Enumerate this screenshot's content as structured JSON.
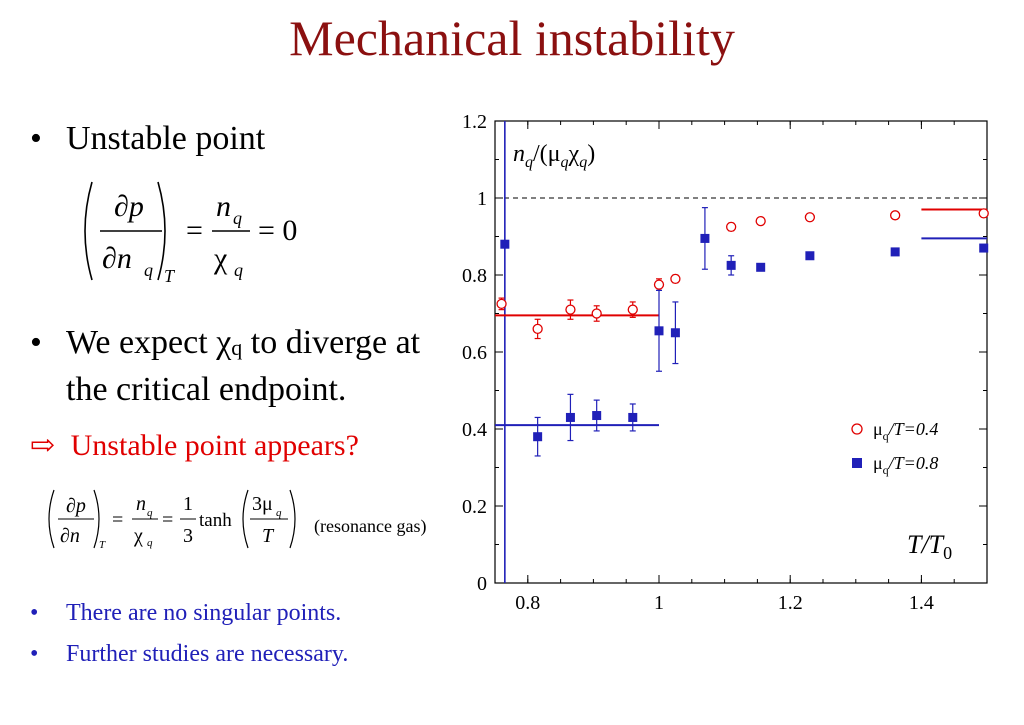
{
  "title": "Mechanical instability",
  "bullets": {
    "unstable_point": "Unstable point",
    "expect_line1_pre": "We expect ",
    "expect_chi": "χ",
    "expect_q": "q",
    "expect_line1_post": " to diverge at",
    "expect_line2": "the critical endpoint.",
    "arrow": "⇨",
    "appears": "Unstable point appears?",
    "resonance": "(resonance gas)",
    "no_singular": "There are no singular points.",
    "further": "Further studies are necessary."
  },
  "formula1": {
    "num_partial": "∂p",
    "den_partial": "∂n",
    "den_sub": "q",
    "outer_sub": "T",
    "eq": "=",
    "rhs_num": "n",
    "rhs_num_sub": "q",
    "rhs_den": "χ",
    "rhs_den_sub": "q",
    "tail": "= 0"
  },
  "formula2": {
    "num_partial": "∂p",
    "den_partial": "∂n",
    "outer_sub": "T",
    "eq": "=",
    "f1_num": "n",
    "f1_num_sub": "q",
    "f1_den": "χ",
    "f1_den_sub": "q",
    "eq2": "=",
    "third_num": "1",
    "third_den": "3",
    "tanh": "tanh",
    "arg_num": "3μ",
    "arg_num_sub": "q",
    "arg_den": "T"
  },
  "colors": {
    "title": "#8b1010",
    "red": "#e00000",
    "blue": "#2020b8",
    "frame": "#000000"
  },
  "chart_data": {
    "type": "scatter",
    "ylabel_text": "n",
    "ylabel_parts": [
      "n",
      "q",
      "/(μ",
      "q",
      "χ",
      "q",
      ")"
    ],
    "xlabel_parts": [
      "T/T",
      "0"
    ],
    "xlim": [
      0.75,
      1.5
    ],
    "ylim": [
      0,
      1.2
    ],
    "xticks": [
      0.8,
      1.0,
      1.2,
      1.4
    ],
    "xtick_labels": [
      "0.8",
      "1",
      "1.2",
      "1.4"
    ],
    "yticks": [
      0,
      0.2,
      0.4,
      0.6,
      0.8,
      1.0,
      1.2
    ],
    "ytick_labels": [
      "0",
      "0.2",
      "0.4",
      "0.6",
      "0.8",
      "1",
      "1.2"
    ],
    "reference_line": 1.0,
    "vertical_line_x": 0.765,
    "legend": [
      {
        "label_parts": [
          "μ",
          "q",
          "/T=0.4"
        ],
        "marker": "open-circle",
        "color": "#e00000"
      },
      {
        "label_parts": [
          "μ",
          "q",
          "/T=0.8"
        ],
        "marker": "filled-square",
        "color": "#2020b8"
      }
    ],
    "series": [
      {
        "name": "μq/T=0.4",
        "marker": "open-circle",
        "color": "#e00000",
        "points": [
          {
            "x": 0.76,
            "y": 0.725,
            "err": 0.015
          },
          {
            "x": 0.815,
            "y": 0.66,
            "err": 0.025
          },
          {
            "x": 0.865,
            "y": 0.71,
            "err": 0.025
          },
          {
            "x": 0.905,
            "y": 0.7,
            "err": 0.02
          },
          {
            "x": 0.96,
            "y": 0.71,
            "err": 0.02
          },
          {
            "x": 1.0,
            "y": 0.775,
            "err": 0.015
          },
          {
            "x": 1.025,
            "y": 0.79,
            "err": 0.01
          },
          {
            "x": 1.11,
            "y": 0.925,
            "err": 0.01
          },
          {
            "x": 1.155,
            "y": 0.94,
            "err": 0.008
          },
          {
            "x": 1.23,
            "y": 0.95,
            "err": 0.005
          },
          {
            "x": 1.36,
            "y": 0.955,
            "err": 0.005
          },
          {
            "x": 1.495,
            "y": 0.96,
            "err": 0.005
          }
        ],
        "segments": [
          {
            "x0": 0.75,
            "x1": 1.0,
            "y": 0.695
          },
          {
            "x0": 1.4,
            "x1": 1.5,
            "y": 0.97
          }
        ]
      },
      {
        "name": "μq/T=0.8",
        "marker": "filled-square",
        "color": "#2020b8",
        "points": [
          {
            "x": 0.765,
            "y": 0.88,
            "err": 0.0
          },
          {
            "x": 0.815,
            "y": 0.38,
            "err": 0.05
          },
          {
            "x": 0.865,
            "y": 0.43,
            "err": 0.06
          },
          {
            "x": 0.905,
            "y": 0.435,
            "err": 0.04
          },
          {
            "x": 0.96,
            "y": 0.43,
            "err": 0.035
          },
          {
            "x": 1.0,
            "y": 0.655,
            "err": 0.105
          },
          {
            "x": 1.025,
            "y": 0.65,
            "err": 0.08
          },
          {
            "x": 1.07,
            "y": 0.895,
            "err": 0.08
          },
          {
            "x": 1.11,
            "y": 0.825,
            "err": 0.025
          },
          {
            "x": 1.155,
            "y": 0.82,
            "err": 0.0
          },
          {
            "x": 1.23,
            "y": 0.85,
            "err": 0.0
          },
          {
            "x": 1.36,
            "y": 0.86,
            "err": 0.0
          },
          {
            "x": 1.495,
            "y": 0.87,
            "err": 0.0
          }
        ],
        "segments": [
          {
            "x0": 0.75,
            "x1": 1.0,
            "y": 0.41
          },
          {
            "x0": 1.4,
            "x1": 1.5,
            "y": 0.895
          }
        ]
      }
    ]
  }
}
